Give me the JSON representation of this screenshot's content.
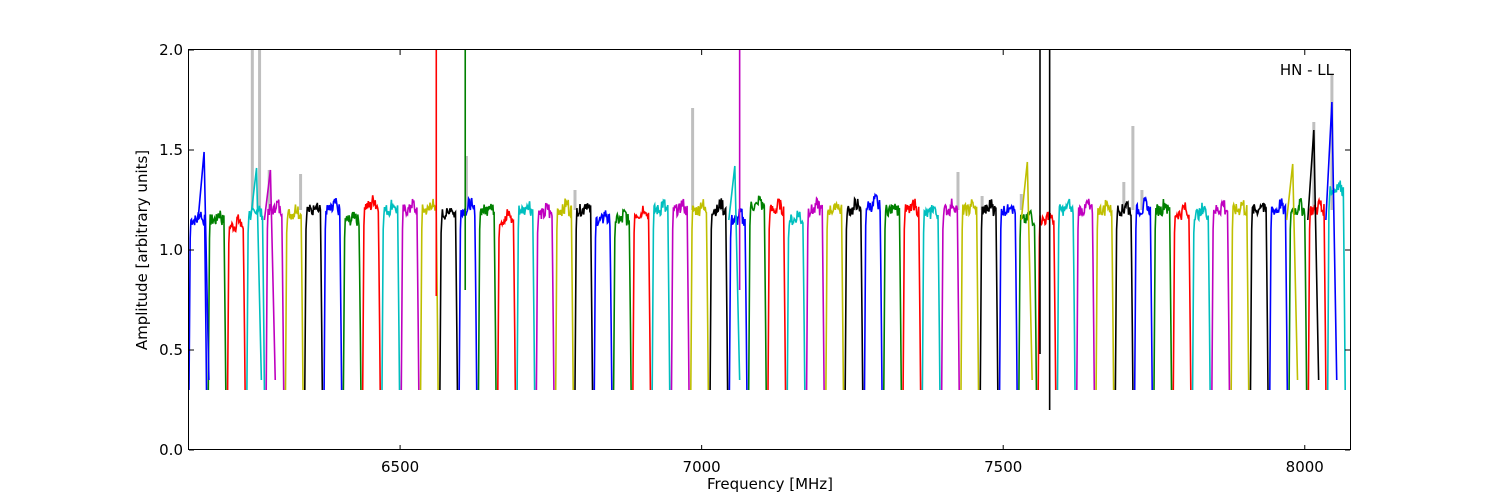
{
  "chart_data": {
    "type": "line",
    "xlabel": "Frequency [MHz]",
    "ylabel": "Amplitude [arbitrary units]",
    "annotation": "HN - LL",
    "xlim": [
      6150,
      8075
    ],
    "ylim": [
      0.0,
      2.0
    ],
    "x_ticks": [
      6500,
      7000,
      7500,
      8000
    ],
    "x_tick_labels": [
      "6500",
      "7000",
      "7500",
      "8000"
    ],
    "y_ticks": [
      0.0,
      0.5,
      1.0,
      1.5,
      2.0
    ],
    "y_tick_labels": [
      "0.0",
      "0.5",
      "1.0",
      "1.5",
      "2.0"
    ],
    "grid": false,
    "legend": "none",
    "background_trace_color": "#bfbfbf",
    "channel_colors": [
      "#0000ff",
      "#008000",
      "#ff0000",
      "#00bfbf",
      "#bf00bf",
      "#bfbf00",
      "#000000"
    ],
    "channel_width_mhz": 32,
    "first_channel_mhz": 6150,
    "channel_count": 60,
    "channel_plateau_levels": [
      1.15,
      1.15,
      1.12,
      1.18,
      1.2,
      1.18,
      1.2,
      1.2,
      1.15,
      1.22,
      1.2,
      1.2,
      1.2,
      1.18,
      1.2,
      1.2,
      1.15,
      1.2,
      1.18,
      1.2,
      1.2,
      1.15,
      1.15,
      1.18,
      1.2,
      1.2,
      1.2,
      1.2,
      1.15,
      1.22,
      1.2,
      1.15,
      1.2,
      1.2,
      1.2,
      1.22,
      1.2,
      1.2,
      1.18,
      1.2,
      1.2,
      1.2,
      1.2,
      1.15,
      1.15,
      1.2,
      1.2,
      1.2,
      1.2,
      1.2,
      1.2,
      1.18,
      1.18,
      1.2,
      1.2,
      1.2,
      1.2,
      1.2,
      1.2,
      1.3
    ],
    "dip_level": 0.3,
    "gray_peaks": [
      {
        "x": 6255,
        "y": 2.0
      },
      {
        "x": 6267,
        "y": 2.0
      },
      {
        "x": 6283,
        "y": 1.4
      },
      {
        "x": 6335,
        "y": 1.38
      },
      {
        "x": 6610,
        "y": 1.47
      },
      {
        "x": 6790,
        "y": 1.3
      },
      {
        "x": 6985,
        "y": 1.71
      },
      {
        "x": 7425,
        "y": 1.39
      },
      {
        "x": 7465,
        "y": 1.27
      },
      {
        "x": 7530,
        "y": 1.28
      },
      {
        "x": 7700,
        "y": 1.34
      },
      {
        "x": 7715,
        "y": 1.62
      },
      {
        "x": 7730,
        "y": 1.3
      },
      {
        "x": 8015,
        "y": 1.64
      },
      {
        "x": 8045,
        "y": 1.88
      }
    ],
    "spikes": [
      {
        "x": 6560,
        "y_top": 2.0,
        "y_bottom": 0.77,
        "color": "#ff0000"
      },
      {
        "x": 6608,
        "y_top": 2.0,
        "y_bottom": 0.8,
        "color": "#008000"
      },
      {
        "x": 7063,
        "y_top": 2.0,
        "y_bottom": 0.8,
        "color": "#bf00bf"
      },
      {
        "x": 7561,
        "y_top": 2.0,
        "y_bottom": 0.48,
        "color": "#000000"
      },
      {
        "x": 7577,
        "y_top": 2.0,
        "y_bottom": 0.2,
        "color": "#000000"
      }
    ],
    "edge_peaks": [
      {
        "x": 6175,
        "y": 1.49,
        "color": "#0000ff"
      },
      {
        "x": 6262,
        "y": 1.41,
        "color": "#00bfbf"
      },
      {
        "x": 6285,
        "y": 1.4,
        "color": "#bf00bf"
      },
      {
        "x": 7055,
        "y": 1.42,
        "color": "#00bfbf"
      },
      {
        "x": 7540,
        "y": 1.44,
        "color": "#bfbf00"
      },
      {
        "x": 7980,
        "y": 1.43,
        "color": "#bfbf00"
      },
      {
        "x": 8015,
        "y": 1.6,
        "color": "#000000"
      },
      {
        "x": 8045,
        "y": 1.74,
        "color": "#0000ff"
      }
    ]
  }
}
